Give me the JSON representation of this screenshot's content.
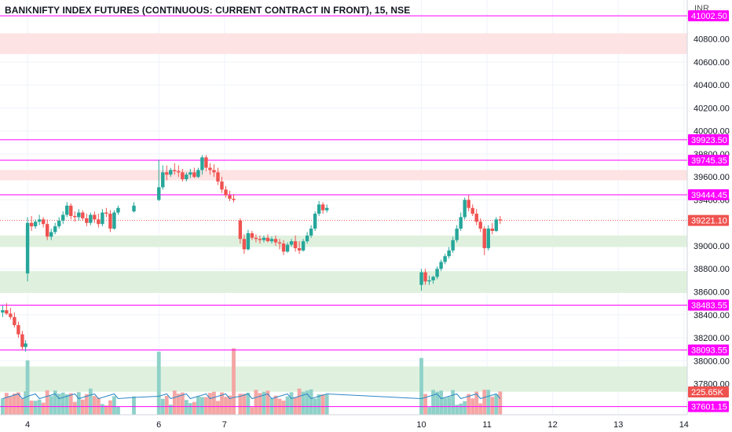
{
  "title": "BANKNIFTY INDEX FUTURES (CONTINUOUS: CURRENT CONTRACT IN FRONT), 15, NSE",
  "currency": "INR",
  "colors": {
    "up": "#26a69a",
    "down": "#ef5350",
    "vol_up": "#8fd1c9",
    "vol_down": "#f4a6a4",
    "hline": "#ff00ff",
    "zone_red": "#fde3e3",
    "zone_green": "#dff1de",
    "grid": "#f0f3fa",
    "axis_text": "#131722",
    "ma": "#2d88c8"
  },
  "chart_data": {
    "type": "candlestick",
    "symbol": "BANKNIFTY",
    "interval": "15",
    "exchange": "NSE",
    "ylim": [
      37530,
      41140
    ],
    "y_ticks": [
      "40800.00",
      "40600.00",
      "40400.00",
      "40200.00",
      "40000.00",
      "39800.00",
      "39600.00",
      "39400.00",
      "39000.00",
      "38800.00",
      "38600.00",
      "38400.00",
      "38200.00",
      "38000.00",
      "37800.00"
    ],
    "x_ticks": [
      {
        "label": "4",
        "x": 4
      },
      {
        "label": "6",
        "x": 6
      },
      {
        "label": "7",
        "x": 7
      },
      {
        "label": "10",
        "x": 10
      },
      {
        "label": "11",
        "x": 11
      },
      {
        "label": "12",
        "x": 12
      },
      {
        "label": "13",
        "x": 13
      },
      {
        "label": "14",
        "x": 14
      }
    ],
    "xlim": [
      3.58,
      14.05
    ],
    "horizontal_levels": [
      {
        "value": 41002.5,
        "label": "41002.50"
      },
      {
        "value": 39923.5,
        "label": "39923.50"
      },
      {
        "value": 39745.35,
        "label": "39745.35"
      },
      {
        "value": 39444.45,
        "label": "39444.45"
      },
      {
        "value": 38483.55,
        "label": "38483.55"
      },
      {
        "value": 38093.55,
        "label": "38093.55"
      },
      {
        "value": 37601.15,
        "label": "37601.15"
      }
    ],
    "last_price": {
      "value": 39221.1,
      "label": "39221.10"
    },
    "volume_label": "225.65K",
    "zones": [
      {
        "kind": "resistance",
        "from": 40670,
        "to": 40850
      },
      {
        "kind": "resistance",
        "from": 39570,
        "to": 39660
      },
      {
        "kind": "support",
        "from": 38990,
        "to": 39090
      },
      {
        "kind": "support",
        "from": 38590,
        "to": 38780
      },
      {
        "kind": "support",
        "from": 37730,
        "to": 37950
      }
    ],
    "candles": [
      {
        "x": 3.62,
        "o": 38420,
        "h": 38480,
        "l": 38380,
        "c": 38440
      },
      {
        "x": 3.68,
        "o": 38440,
        "h": 38500,
        "l": 38400,
        "c": 38410
      },
      {
        "x": 3.74,
        "o": 38410,
        "h": 38460,
        "l": 38360,
        "c": 38380
      },
      {
        "x": 3.8,
        "o": 38380,
        "h": 38420,
        "l": 38290,
        "c": 38310
      },
      {
        "x": 3.86,
        "o": 38310,
        "h": 38340,
        "l": 38200,
        "c": 38230
      },
      {
        "x": 3.92,
        "o": 38230,
        "h": 38260,
        "l": 38090,
        "c": 38120
      },
      {
        "x": 3.97,
        "o": 38120,
        "h": 38180,
        "l": 38080,
        "c": 38150
      },
      {
        "x": 4.0,
        "o": 38760,
        "h": 39250,
        "l": 38690,
        "c": 39200
      },
      {
        "x": 4.06,
        "o": 39200,
        "h": 39260,
        "l": 39130,
        "c": 39170
      },
      {
        "x": 4.12,
        "o": 39170,
        "h": 39230,
        "l": 39150,
        "c": 39210
      },
      {
        "x": 4.18,
        "o": 39210,
        "h": 39270,
        "l": 39180,
        "c": 39230
      },
      {
        "x": 4.24,
        "o": 39230,
        "h": 39250,
        "l": 39160,
        "c": 39190
      },
      {
        "x": 4.3,
        "o": 39190,
        "h": 39230,
        "l": 39050,
        "c": 39080
      },
      {
        "x": 4.36,
        "o": 39080,
        "h": 39150,
        "l": 39050,
        "c": 39120
      },
      {
        "x": 4.42,
        "o": 39120,
        "h": 39200,
        "l": 39100,
        "c": 39170
      },
      {
        "x": 4.48,
        "o": 39170,
        "h": 39250,
        "l": 39150,
        "c": 39220
      },
      {
        "x": 4.54,
        "o": 39220,
        "h": 39300,
        "l": 39190,
        "c": 39270
      },
      {
        "x": 4.6,
        "o": 39270,
        "h": 39380,
        "l": 39250,
        "c": 39350
      },
      {
        "x": 4.66,
        "o": 39350,
        "h": 39370,
        "l": 39230,
        "c": 39260
      },
      {
        "x": 4.72,
        "o": 39260,
        "h": 39300,
        "l": 39210,
        "c": 39250
      },
      {
        "x": 4.78,
        "o": 39250,
        "h": 39320,
        "l": 39220,
        "c": 39290
      },
      {
        "x": 4.84,
        "o": 39290,
        "h": 39310,
        "l": 39220,
        "c": 39240
      },
      {
        "x": 4.9,
        "o": 39240,
        "h": 39280,
        "l": 39170,
        "c": 39200
      },
      {
        "x": 4.96,
        "o": 39200,
        "h": 39290,
        "l": 39180,
        "c": 39270
      },
      {
        "x": 5.02,
        "o": 39270,
        "h": 39300,
        "l": 39200,
        "c": 39230
      },
      {
        "x": 5.08,
        "o": 39230,
        "h": 39280,
        "l": 39160,
        "c": 39190
      },
      {
        "x": 5.14,
        "o": 39190,
        "h": 39320,
        "l": 39170,
        "c": 39290
      },
      {
        "x": 5.2,
        "o": 39290,
        "h": 39330,
        "l": 39250,
        "c": 39280
      },
      {
        "x": 5.26,
        "o": 39280,
        "h": 39310,
        "l": 39120,
        "c": 39150
      },
      {
        "x": 5.32,
        "o": 39150,
        "h": 39310,
        "l": 39140,
        "c": 39290
      },
      {
        "x": 5.38,
        "o": 39290,
        "h": 39350,
        "l": 39270,
        "c": 39330
      },
      {
        "x": 5.62,
        "o": 39300,
        "h": 39380,
        "l": 39290,
        "c": 39350
      },
      {
        "x": 6.0,
        "o": 39400,
        "h": 39750,
        "l": 39390,
        "c": 39510
      },
      {
        "x": 6.06,
        "o": 39510,
        "h": 39700,
        "l": 39490,
        "c": 39640
      },
      {
        "x": 6.12,
        "o": 39640,
        "h": 39700,
        "l": 39570,
        "c": 39620
      },
      {
        "x": 6.18,
        "o": 39620,
        "h": 39680,
        "l": 39600,
        "c": 39660
      },
      {
        "x": 6.24,
        "o": 39660,
        "h": 39720,
        "l": 39620,
        "c": 39650
      },
      {
        "x": 6.3,
        "o": 39650,
        "h": 39700,
        "l": 39600,
        "c": 39640
      },
      {
        "x": 6.36,
        "o": 39640,
        "h": 39670,
        "l": 39560,
        "c": 39580
      },
      {
        "x": 6.42,
        "o": 39580,
        "h": 39640,
        "l": 39560,
        "c": 39620
      },
      {
        "x": 6.48,
        "o": 39620,
        "h": 39670,
        "l": 39590,
        "c": 39640
      },
      {
        "x": 6.54,
        "o": 39640,
        "h": 39680,
        "l": 39590,
        "c": 39600
      },
      {
        "x": 6.6,
        "o": 39600,
        "h": 39680,
        "l": 39590,
        "c": 39660
      },
      {
        "x": 6.66,
        "o": 39660,
        "h": 39790,
        "l": 39620,
        "c": 39770
      },
      {
        "x": 6.72,
        "o": 39770,
        "h": 39790,
        "l": 39650,
        "c": 39680
      },
      {
        "x": 6.78,
        "o": 39680,
        "h": 39720,
        "l": 39620,
        "c": 39660
      },
      {
        "x": 6.84,
        "o": 39660,
        "h": 39710,
        "l": 39600,
        "c": 39640
      },
      {
        "x": 6.9,
        "o": 39640,
        "h": 39680,
        "l": 39530,
        "c": 39560
      },
      {
        "x": 6.96,
        "o": 39560,
        "h": 39600,
        "l": 39460,
        "c": 39490
      },
      {
        "x": 7.02,
        "o": 39490,
        "h": 39520,
        "l": 39420,
        "c": 39440
      },
      {
        "x": 7.08,
        "o": 39440,
        "h": 39480,
        "l": 39390,
        "c": 39410
      },
      {
        "x": 7.14,
        "o": 39410,
        "h": 39450,
        "l": 39380,
        "c": 39400
      },
      {
        "x": 7.24,
        "o": 39220,
        "h": 39240,
        "l": 39020,
        "c": 39060
      },
      {
        "x": 7.3,
        "o": 39060,
        "h": 39100,
        "l": 38930,
        "c": 38970
      },
      {
        "x": 7.36,
        "o": 38970,
        "h": 39140,
        "l": 38960,
        "c": 39110
      },
      {
        "x": 7.42,
        "o": 39110,
        "h": 39130,
        "l": 39050,
        "c": 39070
      },
      {
        "x": 7.48,
        "o": 39070,
        "h": 39100,
        "l": 39030,
        "c": 39060
      },
      {
        "x": 7.54,
        "o": 39060,
        "h": 39090,
        "l": 39020,
        "c": 39050
      },
      {
        "x": 7.6,
        "o": 39050,
        "h": 39090,
        "l": 39030,
        "c": 39070
      },
      {
        "x": 7.66,
        "o": 39070,
        "h": 39100,
        "l": 39030,
        "c": 39040
      },
      {
        "x": 7.72,
        "o": 39040,
        "h": 39080,
        "l": 39020,
        "c": 39060
      },
      {
        "x": 7.78,
        "o": 39060,
        "h": 39090,
        "l": 39000,
        "c": 39030
      },
      {
        "x": 7.84,
        "o": 39030,
        "h": 39060,
        "l": 38970,
        "c": 39020
      },
      {
        "x": 7.9,
        "o": 39020,
        "h": 39050,
        "l": 38920,
        "c": 38950
      },
      {
        "x": 7.96,
        "o": 38950,
        "h": 39030,
        "l": 38940,
        "c": 39010
      },
      {
        "x": 8.02,
        "o": 39010,
        "h": 39060,
        "l": 38990,
        "c": 39040
      },
      {
        "x": 8.08,
        "o": 39040,
        "h": 39090,
        "l": 38950,
        "c": 38980
      },
      {
        "x": 8.14,
        "o": 38980,
        "h": 39040,
        "l": 38930,
        "c": 38960
      },
      {
        "x": 8.2,
        "o": 38960,
        "h": 39060,
        "l": 38950,
        "c": 39040
      },
      {
        "x": 8.26,
        "o": 39040,
        "h": 39120,
        "l": 39020,
        "c": 39090
      },
      {
        "x": 8.32,
        "o": 39090,
        "h": 39180,
        "l": 39070,
        "c": 39150
      },
      {
        "x": 8.38,
        "o": 39150,
        "h": 39300,
        "l": 39130,
        "c": 39280
      },
      {
        "x": 8.44,
        "o": 39280,
        "h": 39390,
        "l": 39260,
        "c": 39360
      },
      {
        "x": 8.5,
        "o": 39360,
        "h": 39380,
        "l": 39280,
        "c": 39310
      },
      {
        "x": 8.56,
        "o": 39310,
        "h": 39360,
        "l": 39290,
        "c": 39330
      },
      {
        "x": 10.0,
        "o": 38660,
        "h": 38800,
        "l": 38610,
        "c": 38770
      },
      {
        "x": 10.06,
        "o": 38770,
        "h": 38800,
        "l": 38660,
        "c": 38690
      },
      {
        "x": 10.12,
        "o": 38690,
        "h": 38740,
        "l": 38660,
        "c": 38700
      },
      {
        "x": 10.18,
        "o": 38700,
        "h": 38740,
        "l": 38670,
        "c": 38730
      },
      {
        "x": 10.24,
        "o": 38730,
        "h": 38820,
        "l": 38710,
        "c": 38800
      },
      {
        "x": 10.3,
        "o": 38800,
        "h": 38880,
        "l": 38780,
        "c": 38860
      },
      {
        "x": 10.36,
        "o": 38860,
        "h": 38930,
        "l": 38840,
        "c": 38910
      },
      {
        "x": 10.42,
        "o": 38910,
        "h": 38990,
        "l": 38890,
        "c": 38960
      },
      {
        "x": 10.48,
        "o": 38960,
        "h": 39080,
        "l": 38940,
        "c": 39050
      },
      {
        "x": 10.54,
        "o": 39050,
        "h": 39180,
        "l": 39030,
        "c": 39150
      },
      {
        "x": 10.6,
        "o": 39150,
        "h": 39290,
        "l": 39130,
        "c": 39250
      },
      {
        "x": 10.66,
        "o": 39250,
        "h": 39420,
        "l": 39230,
        "c": 39400
      },
      {
        "x": 10.72,
        "o": 39400,
        "h": 39440,
        "l": 39300,
        "c": 39330
      },
      {
        "x": 10.78,
        "o": 39330,
        "h": 39360,
        "l": 39260,
        "c": 39280
      },
      {
        "x": 10.84,
        "o": 39280,
        "h": 39320,
        "l": 39180,
        "c": 39210
      },
      {
        "x": 10.9,
        "o": 39210,
        "h": 39240,
        "l": 39120,
        "c": 39150
      },
      {
        "x": 10.96,
        "o": 39150,
        "h": 39170,
        "l": 38920,
        "c": 38980
      },
      {
        "x": 11.02,
        "o": 38980,
        "h": 39180,
        "l": 38960,
        "c": 39150
      },
      {
        "x": 11.08,
        "o": 39150,
        "h": 39200,
        "l": 39100,
        "c": 39130
      },
      {
        "x": 11.14,
        "o": 39130,
        "h": 39250,
        "l": 39120,
        "c": 39230
      },
      {
        "x": 11.2,
        "o": 39230,
        "h": 39260,
        "l": 39190,
        "c": 39221
      }
    ]
  }
}
